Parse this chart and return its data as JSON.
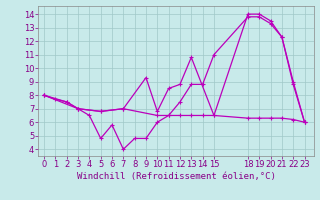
{
  "xlabel": "Windchill (Refroidissement éolien,°C)",
  "background_color": "#c8eaea",
  "grid_color": "#a0c8c8",
  "line_color": "#bb00bb",
  "x_ticks": [
    0,
    1,
    2,
    3,
    4,
    5,
    6,
    7,
    8,
    9,
    10,
    11,
    12,
    13,
    14,
    15,
    18,
    19,
    20,
    21,
    22,
    23
  ],
  "xlim": [
    -0.5,
    23.8
  ],
  "ylim": [
    3.5,
    14.6
  ],
  "y_ticks": [
    4,
    5,
    6,
    7,
    8,
    9,
    10,
    11,
    12,
    13,
    14
  ],
  "series1_x": [
    0,
    1,
    2,
    3,
    4,
    5,
    6,
    7,
    8,
    9,
    10,
    11,
    12,
    13,
    14,
    15,
    18,
    19,
    20,
    21,
    22,
    23
  ],
  "series1_y": [
    8.0,
    7.7,
    7.5,
    7.0,
    6.5,
    4.8,
    5.8,
    4.0,
    4.8,
    4.8,
    6.0,
    6.5,
    7.5,
    8.8,
    8.8,
    11.0,
    13.8,
    13.8,
    13.3,
    12.3,
    8.8,
    6.0
  ],
  "series2_x": [
    0,
    2,
    3,
    5,
    7,
    9,
    10,
    11,
    12,
    13,
    15,
    18,
    19,
    20,
    21,
    22,
    23
  ],
  "series2_y": [
    8.0,
    7.5,
    7.0,
    6.8,
    7.0,
    9.3,
    6.8,
    8.5,
    8.8,
    10.8,
    6.5,
    14.0,
    14.0,
    13.5,
    12.3,
    9.0,
    6.0
  ],
  "series3_x": [
    0,
    3,
    5,
    7,
    10,
    11,
    12,
    13,
    14,
    15,
    18,
    19,
    20,
    21,
    22,
    23
  ],
  "series3_y": [
    8.0,
    7.0,
    6.8,
    7.0,
    6.5,
    6.5,
    6.5,
    6.5,
    6.5,
    6.5,
    6.3,
    6.3,
    6.3,
    6.3,
    6.2,
    6.0
  ],
  "tick_fontsize": 6,
  "xlabel_fontsize": 6.5
}
